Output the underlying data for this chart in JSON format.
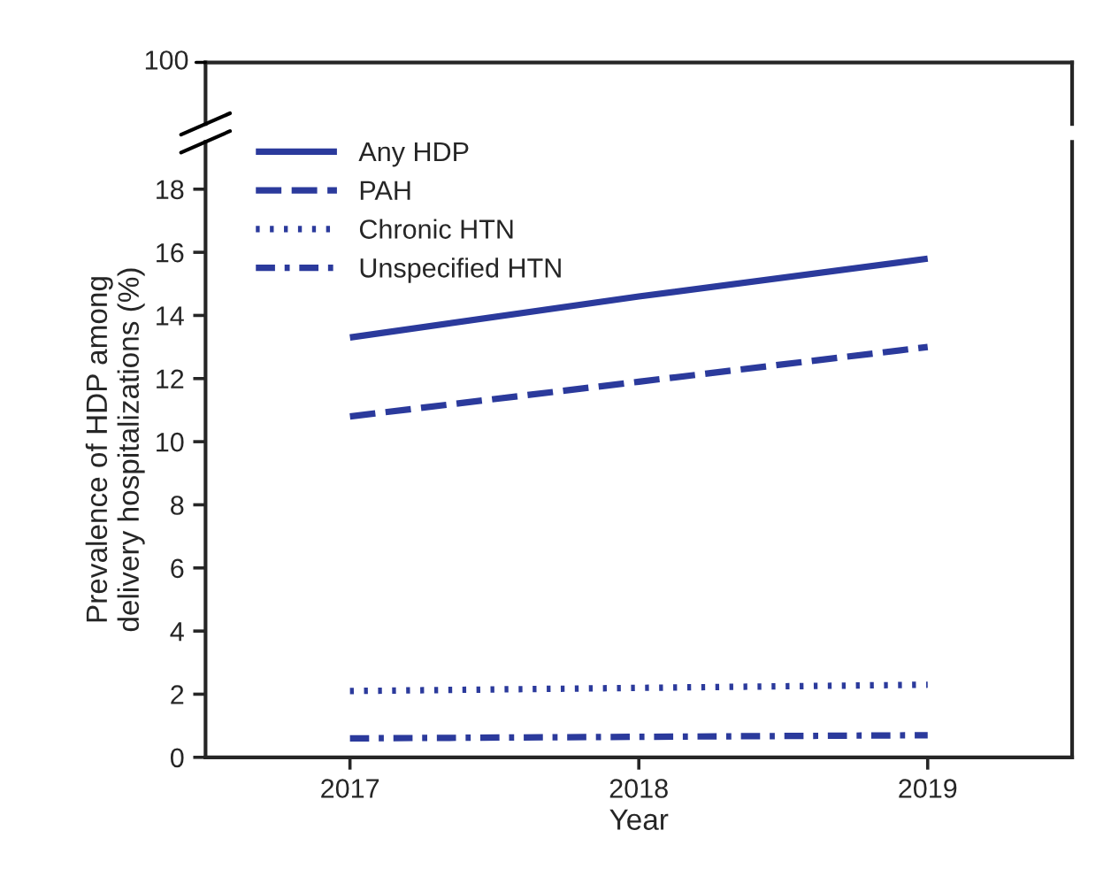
{
  "chart_data": {
    "type": "line",
    "xlabel": "Year",
    "ylabel": "Prevalence of HDP among\ndelivery hospitalizations (%)",
    "x": [
      2017,
      2018,
      2019
    ],
    "series": [
      {
        "name": "Any HDP",
        "color": "#2b3a9c",
        "line_style": "solid",
        "values": [
          13.3,
          14.6,
          15.8
        ]
      },
      {
        "name": "PAH",
        "color": "#2b3a9c",
        "line_style": "dashed",
        "values": [
          10.8,
          11.9,
          13.0
        ]
      },
      {
        "name": "Chronic HTN",
        "color": "#2b3a9c",
        "line_style": "dotted",
        "values": [
          2.1,
          2.2,
          2.3
        ]
      },
      {
        "name": "Unspecified HTN",
        "color": "#2b3a9c",
        "line_style": "dashdot",
        "values": [
          0.6,
          0.65,
          0.7
        ]
      }
    ],
    "xlim": [
      2016.5,
      2019.5
    ],
    "xticks": [
      2017,
      2018,
      2019
    ],
    "ylim": [
      0,
      19.5
    ],
    "yticks": [
      0,
      2,
      4,
      6,
      8,
      10,
      12,
      14,
      16,
      18
    ],
    "annotations": [
      "100"
    ],
    "grid": false,
    "legend": "top left",
    "marker": "none"
  }
}
